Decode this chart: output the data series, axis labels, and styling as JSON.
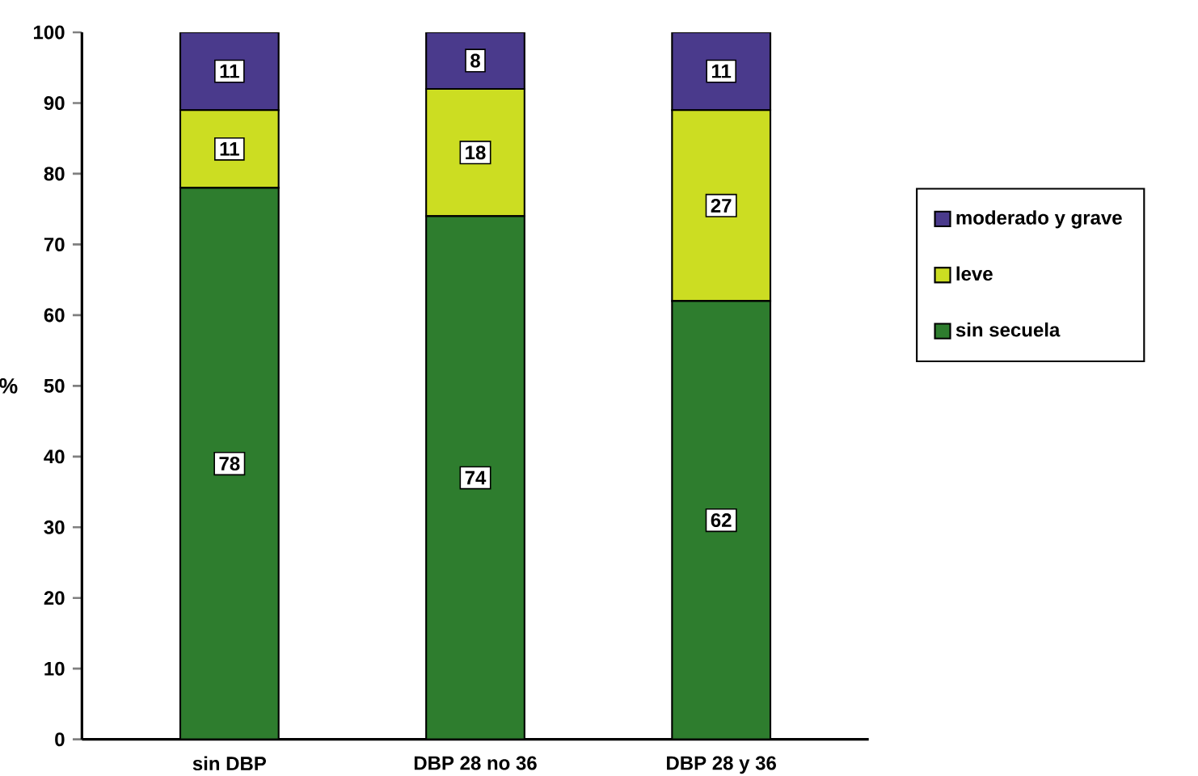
{
  "chart_data": {
    "type": "bar",
    "stacked": true,
    "ylabel": "%",
    "categories": [
      "sin DBP",
      "DBP 28 no 36",
      "DBP 28 y 36"
    ],
    "series": [
      {
        "name": "sin secuela",
        "color": "#2e7d2e",
        "values": [
          78,
          74,
          62
        ]
      },
      {
        "name": "leve",
        "color": "#ccdd22",
        "values": [
          11,
          18,
          27
        ]
      },
      {
        "name": "moderado y grave",
        "color": "#4a3a8c",
        "values": [
          11,
          8,
          11
        ]
      }
    ],
    "ylim": [
      0,
      100
    ],
    "yticks": [
      0,
      10,
      20,
      30,
      40,
      50,
      60,
      70,
      80,
      90,
      100
    ],
    "data_labels": true,
    "legend": "right",
    "grid": false
  }
}
